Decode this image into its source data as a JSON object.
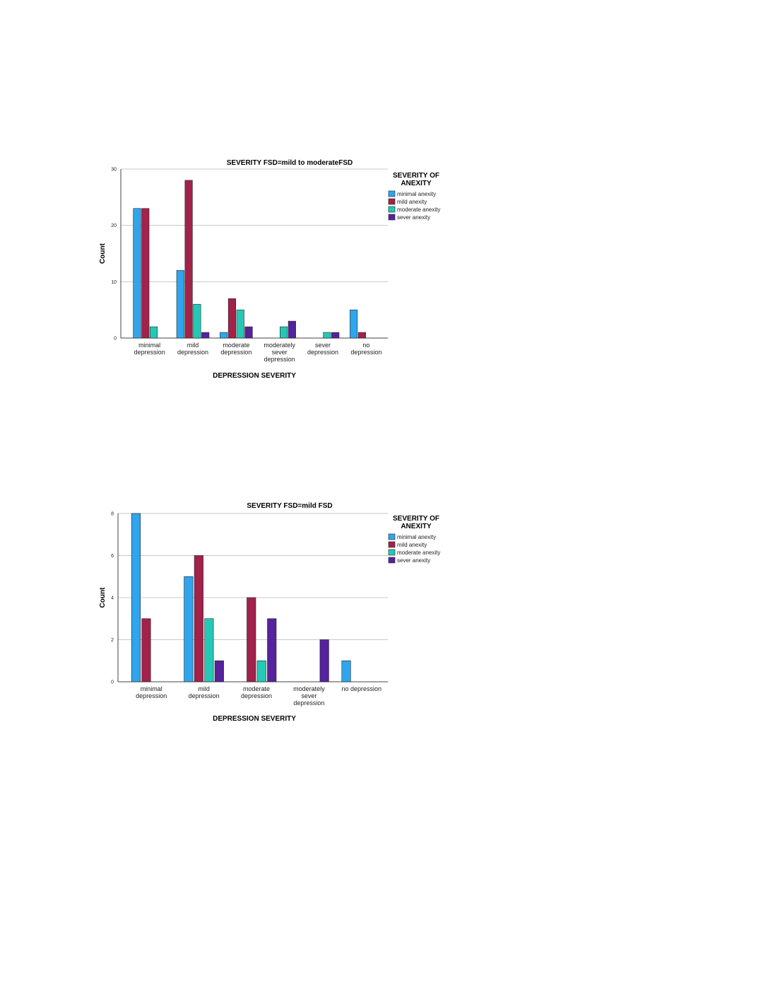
{
  "legend": {
    "title_line1": "SEVERITY OF",
    "title_line2": "ANEXITY",
    "items": [
      "minimal anexity",
      "mild anexity",
      "moderate anexity",
      "sever anexity"
    ],
    "colors": [
      "#2fa5ee",
      "#a2224a",
      "#24c9b6",
      "#55239d"
    ]
  },
  "chart_data": [
    {
      "type": "bar",
      "title": "SEVERITY FSD=mild to moderateFSD",
      "xlabel": "DEPRESSION SEVERITY",
      "ylabel": "Count",
      "ylim": [
        0,
        30
      ],
      "yticks": [
        "0",
        "10",
        "20",
        "30"
      ],
      "grid": true,
      "legend_position": "right",
      "categories": [
        [
          "minimal",
          "depression"
        ],
        [
          "mild",
          "depression"
        ],
        [
          "moderate",
          "depression"
        ],
        [
          "moderately",
          "sever",
          "depression"
        ],
        [
          "sever",
          "depression"
        ],
        [
          "no",
          "depression"
        ]
      ],
      "series": [
        {
          "name": "minimal anexity",
          "values": [
            23,
            12,
            1,
            0,
            0,
            5
          ]
        },
        {
          "name": "mild anexity",
          "values": [
            23,
            28,
            7,
            0,
            0,
            1
          ]
        },
        {
          "name": "moderate anexity",
          "values": [
            2,
            6,
            5,
            2,
            1,
            0
          ]
        },
        {
          "name": "sever anexity",
          "values": [
            0,
            1,
            2,
            3,
            1,
            0
          ]
        }
      ]
    },
    {
      "type": "bar",
      "title": "SEVERITY FSD=mild FSD",
      "xlabel": "DEPRESSION SEVERITY",
      "ylabel": "Count",
      "ylim": [
        0,
        8
      ],
      "yticks": [
        "0",
        "2",
        "4",
        "6",
        "8"
      ],
      "grid": true,
      "legend_position": "right",
      "categories": [
        [
          "minimal",
          "depression"
        ],
        [
          "mild",
          "depression"
        ],
        [
          "moderate",
          "depression"
        ],
        [
          "moderately",
          "sever",
          "depression"
        ],
        [
          "no depression"
        ]
      ],
      "series": [
        {
          "name": "minimal anexity",
          "values": [
            8,
            5,
            0,
            0,
            1
          ]
        },
        {
          "name": "mild anexity",
          "values": [
            3,
            6,
            4,
            0,
            0
          ]
        },
        {
          "name": "moderate anexity",
          "values": [
            0,
            3,
            1,
            0,
            0
          ]
        },
        {
          "name": "sever anexity",
          "values": [
            0,
            1,
            3,
            2,
            0
          ]
        }
      ]
    }
  ]
}
